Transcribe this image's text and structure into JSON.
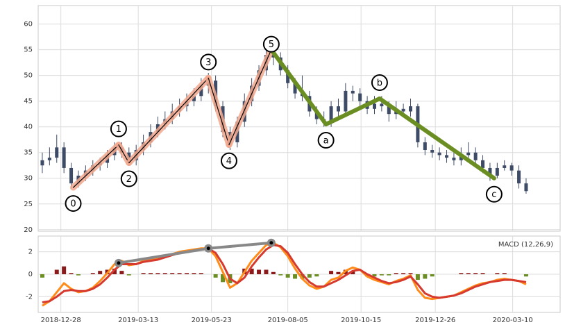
{
  "chart_data": [
    {
      "type": "candlestick",
      "x": [
        "2018-12-10",
        "2018-12-17",
        "2018-12-24",
        "2018-12-31",
        "2019-01-07",
        "2019-01-14",
        "2019-01-21",
        "2019-01-28",
        "2019-02-04",
        "2019-02-11",
        "2019-02-18",
        "2019-02-25",
        "2019-03-04",
        "2019-03-11",
        "2019-03-18",
        "2019-03-25",
        "2019-04-01",
        "2019-04-08",
        "2019-04-15",
        "2019-04-22",
        "2019-04-29",
        "2019-05-06",
        "2019-05-13",
        "2019-05-20",
        "2019-05-27",
        "2019-06-03",
        "2019-06-10",
        "2019-06-17",
        "2019-06-24",
        "2019-07-01",
        "2019-07-08",
        "2019-07-15",
        "2019-07-22",
        "2019-07-29",
        "2019-08-05",
        "2019-08-12",
        "2019-08-19",
        "2019-08-26",
        "2019-09-02",
        "2019-09-09",
        "2019-09-16",
        "2019-09-23",
        "2019-09-30",
        "2019-10-07",
        "2019-10-14",
        "2019-10-21",
        "2019-10-28",
        "2019-11-04",
        "2019-11-11",
        "2019-11-18",
        "2019-11-25",
        "2019-12-02",
        "2019-12-09",
        "2019-12-16",
        "2019-12-23",
        "2019-12-30",
        "2020-01-06",
        "2020-01-13",
        "2020-01-20",
        "2020-01-27",
        "2020-02-03",
        "2020-02-10",
        "2020-02-17",
        "2020-02-24",
        "2020-03-02",
        "2020-03-09",
        "2020-03-16",
        "2020-03-23"
      ],
      "open": [
        32.5,
        33.5,
        34,
        36,
        32,
        29,
        30.5,
        31.5,
        32.5,
        33,
        34.5,
        36,
        35,
        33.5,
        35.5,
        37,
        39,
        40.5,
        41.5,
        43,
        44,
        45,
        46,
        48,
        49,
        44,
        39,
        37,
        41,
        45,
        48,
        51,
        54,
        53.5,
        51,
        48.5,
        46.5,
        46,
        43,
        41.5,
        41,
        44,
        43,
        47,
        46.5,
        45,
        43.5,
        44.5,
        44,
        42.5,
        43.5,
        43,
        44,
        37,
        35.5,
        35,
        34.5,
        34,
        33.5,
        34.5,
        35,
        33.5,
        32,
        30.5,
        32,
        32.5,
        31.5,
        29
      ],
      "high": [
        35,
        36,
        38.5,
        37,
        33,
        31.5,
        32.5,
        33.5,
        34,
        35.5,
        37,
        37,
        36,
        36.5,
        38.5,
        40.5,
        42,
        43,
        44.5,
        45.5,
        46.5,
        47.5,
        49.5,
        50.5,
        50,
        45,
        40,
        42,
        46.5,
        49.5,
        52,
        56.5,
        56,
        54.5,
        52,
        49.5,
        50,
        47,
        44,
        43,
        45,
        45.5,
        48.5,
        48,
        47.5,
        46,
        46,
        46,
        45,
        45,
        44.5,
        45.5,
        44.5,
        38,
        36.5,
        36,
        35.5,
        35,
        36,
        37,
        36,
        34.5,
        33,
        33,
        33.5,
        33,
        32.5,
        30
      ],
      "low": [
        31,
        32.5,
        33,
        31,
        28,
        28.2,
        29.5,
        30.5,
        31.5,
        32,
        33.5,
        34,
        32.5,
        32.5,
        34.5,
        36,
        38,
        39.5,
        40.5,
        42,
        43,
        44,
        45,
        46.5,
        43,
        38,
        35.5,
        36,
        40,
        44,
        47,
        50,
        52,
        50,
        47.5,
        45.5,
        45,
        42,
        40.5,
        40,
        40,
        42,
        42,
        45,
        44,
        42.5,
        42.5,
        43,
        41,
        41.5,
        42,
        42,
        36,
        34.5,
        34,
        33.5,
        33,
        32.5,
        32.5,
        34,
        32.5,
        31,
        29.5,
        30,
        31.5,
        30.5,
        28,
        27
      ],
      "close": [
        33.5,
        34,
        36,
        32,
        29,
        30.5,
        31.5,
        32.5,
        33,
        34.5,
        36,
        35,
        33.5,
        35.5,
        37,
        39,
        40.5,
        41.5,
        43,
        44,
        45,
        46,
        48,
        49,
        44,
        39,
        37,
        41,
        45,
        48,
        51,
        54,
        53.5,
        51,
        48.5,
        46.5,
        46,
        43,
        41.5,
        41,
        44,
        43,
        47,
        46.5,
        45,
        43.5,
        44.5,
        44,
        42.5,
        43.5,
        43,
        44,
        37,
        35.5,
        35,
        34.5,
        34,
        33.5,
        34.5,
        35,
        33.5,
        32,
        30.5,
        32,
        32.5,
        31.5,
        29,
        27.5
      ],
      "color": "#3d4b66",
      "xlim": [
        "2018-12-06",
        "2020-04-25"
      ],
      "ylim": [
        19.7,
        63.6
      ],
      "yticks": [
        20,
        25,
        30,
        35,
        40,
        45,
        50,
        55,
        60
      ],
      "grid": true,
      "waves": {
        "labels": [
          "0",
          "1",
          "2",
          "3",
          "4",
          "5",
          "a",
          "b",
          "c"
        ],
        "x": [
          "2019-01-09",
          "2019-02-22",
          "2019-03-04",
          "2019-05-20",
          "2019-06-09",
          "2019-07-20",
          "2019-09-11",
          "2019-11-02",
          "2020-02-21"
        ],
        "values": [
          28.2,
          36.5,
          33,
          49.5,
          36.5,
          55,
          40.5,
          45.5,
          30
        ],
        "impulse_color": "#f2a98f",
        "corrective_color": "#6b8e23"
      }
    },
    {
      "type": "macd",
      "title": "MACD (12,26,9)",
      "x": [
        "2018-12-10",
        "2018-12-17",
        "2018-12-24",
        "2018-12-31",
        "2019-01-07",
        "2019-01-14",
        "2019-01-21",
        "2019-01-28",
        "2019-02-04",
        "2019-02-11",
        "2019-02-18",
        "2019-02-25",
        "2019-03-04",
        "2019-03-11",
        "2019-03-18",
        "2019-03-25",
        "2019-04-01",
        "2019-04-08",
        "2019-04-15",
        "2019-04-22",
        "2019-04-29",
        "2019-05-06",
        "2019-05-13",
        "2019-05-20",
        "2019-05-27",
        "2019-06-03",
        "2019-06-10",
        "2019-06-17",
        "2019-06-24",
        "2019-07-01",
        "2019-07-08",
        "2019-07-15",
        "2019-07-22",
        "2019-07-29",
        "2019-08-05",
        "2019-08-12",
        "2019-08-19",
        "2019-08-26",
        "2019-09-02",
        "2019-09-09",
        "2019-09-16",
        "2019-09-23",
        "2019-09-30",
        "2019-10-07",
        "2019-10-14",
        "2019-10-21",
        "2019-10-28",
        "2019-11-04",
        "2019-11-11",
        "2019-11-18",
        "2019-11-25",
        "2019-12-02",
        "2019-12-09",
        "2019-12-16",
        "2019-12-23",
        "2019-12-30",
        "2020-01-06",
        "2020-01-13",
        "2020-01-20",
        "2020-01-27",
        "2020-02-03",
        "2020-02-10",
        "2020-02-17",
        "2020-02-24",
        "2020-03-02",
        "2020-03-09",
        "2020-03-16",
        "2020-03-23"
      ],
      "series": [
        {
          "color": "#ff8c1a",
          "values": [
            -2.8,
            -2.4,
            -1.6,
            -0.8,
            -1.3,
            -1.6,
            -1.5,
            -1.2,
            -0.6,
            0.1,
            0.9,
            1.2,
            0.8,
            0.9,
            1.2,
            1.3,
            1.4,
            1.6,
            1.8,
            2.0,
            2.1,
            2.2,
            2.3,
            2.3,
            1.6,
            0.2,
            -1.2,
            -0.8,
            0.2,
            1.2,
            1.9,
            2.6,
            2.8,
            2.4,
            1.6,
            0.5,
            -0.4,
            -1.0,
            -1.3,
            -1.1,
            -0.5,
            -0.3,
            0.3,
            0.6,
            0.4,
            -0.2,
            -0.5,
            -0.7,
            -0.9,
            -0.6,
            -0.4,
            -0.1,
            -1.4,
            -2.1,
            -2.2,
            -2.1,
            -2.0,
            -1.9,
            -1.6,
            -1.3,
            -1.0,
            -0.8,
            -0.7,
            -0.5,
            -0.4,
            -0.5,
            -0.6,
            -0.9
          ]
        },
        {
          "color": "#d63a2f",
          "values": [
            -2.5,
            -2.4,
            -2.0,
            -1.5,
            -1.4,
            -1.5,
            -1.5,
            -1.3,
            -0.9,
            -0.3,
            0.4,
            0.9,
            0.9,
            0.9,
            1.1,
            1.2,
            1.3,
            1.5,
            1.7,
            1.9,
            2.0,
            2.1,
            2.2,
            2.3,
            1.9,
            0.9,
            -0.4,
            -0.8,
            -0.3,
            0.7,
            1.5,
            2.2,
            2.6,
            2.5,
            1.9,
            0.9,
            0.0,
            -0.7,
            -1.1,
            -1.1,
            -0.8,
            -0.5,
            -0.1,
            0.3,
            0.4,
            0.0,
            -0.3,
            -0.6,
            -0.8,
            -0.7,
            -0.5,
            -0.2,
            -0.9,
            -1.7,
            -2.0,
            -2.1,
            -2.0,
            -1.9,
            -1.7,
            -1.4,
            -1.1,
            -0.9,
            -0.7,
            -0.6,
            -0.5,
            -0.5,
            -0.6,
            -0.7
          ]
        }
      ],
      "histogram": {
        "positive_color": "#8b1a1a",
        "negative_color": "#6b8e23",
        "values": [
          -0.3,
          0,
          0.4,
          0.7,
          0.1,
          -0.1,
          0,
          0.1,
          0.3,
          0.4,
          0.5,
          0.3,
          -0.1,
          0,
          0.1,
          0.1,
          0.1,
          0.1,
          0.1,
          0.1,
          0.1,
          0.1,
          0.1,
          0,
          -0.3,
          -0.7,
          -0.8,
          0,
          0.5,
          0.5,
          0.4,
          0.4,
          0.2,
          -0.1,
          -0.3,
          -0.4,
          -0.4,
          -0.3,
          -0.2,
          0,
          0.3,
          0.2,
          0.4,
          0.3,
          0,
          -0.2,
          -0.2,
          -0.1,
          -0.1,
          0.1,
          0.1,
          0.1,
          -0.5,
          -0.4,
          -0.2,
          0,
          0,
          0,
          0.1,
          0.1,
          0.1,
          0.1,
          0,
          0.1,
          0.1,
          0,
          0,
          -0.2
        ]
      },
      "divergence": {
        "x": [
          "2019-02-22",
          "2019-05-20",
          "2019-07-20"
        ],
        "values": [
          1.0,
          2.3,
          2.8
        ],
        "color": "#888888"
      },
      "xlim": [
        "2018-12-06",
        "2020-04-25"
      ],
      "xticks": [
        "2018-12-28",
        "2019-03-13",
        "2019-05-23",
        "2019-08-05",
        "2019-10-15",
        "2019-12-26",
        "2020-03-10"
      ],
      "ylim": [
        -3.4,
        3.4
      ],
      "yticks": [
        -2,
        0,
        2
      ],
      "grid": true
    }
  ]
}
